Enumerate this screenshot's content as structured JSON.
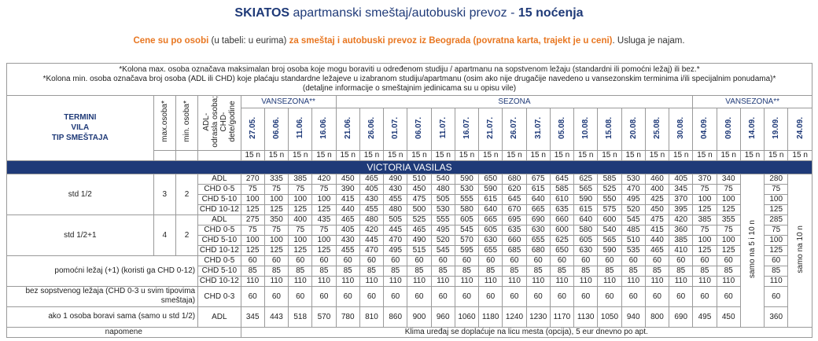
{
  "header": {
    "title_bold": "SKIATOS",
    "title_mid": " apartmanski smeštaj/autobuski prevoz - ",
    "title_end": "15 noćenja",
    "sub_a": "Cene su po osobi",
    "sub_b": " (u tabeli: u eurima) ",
    "sub_c": "za smeštaj i autobuski prevoz iz Beograda (povratna karta, trajekt je u ceni)",
    "sub_d": ". Usluga je najam."
  },
  "notes": {
    "line1": "*Kolona max. osoba označava maksimalan broj osoba koje mogu boraviti u određenom studiju / apartmanu na sopstvenom ležaju (standardni ili pomoćni ležaj) ili bez.*",
    "line2": "*Kolona min. osoba označava broj osoba (ADL ili CHD) koje plaćaju standardne ležajeve u izabranom studiju/apartmanu (osim ako nije drugačije navedeno u vansezonskim terminima i/ili specijalnim ponudama)*",
    "line3": "(detaljne informacije o smeštajnim jedinicama su u opisu vile)"
  },
  "columns": {
    "left_header": [
      "TERMINI",
      "VILA",
      "TIP SMEŠTAJA"
    ],
    "max_label": "max.osoba*",
    "min_label": "min. osoba*",
    "cat_label": [
      "ADL-",
      "odrasla osoba;",
      "CHD-",
      "dete/godine"
    ],
    "season_1": "VANSEZONA**",
    "season_2": "SEZONA",
    "season_3": "VANSEZONA**",
    "dates": [
      "27.05.",
      "06.06.",
      "11.06.",
      "16.06.",
      "21.06.",
      "26.06.",
      "01.07.",
      "06.07.",
      "11.07.",
      "16.07.",
      "21.07.",
      "26.07.",
      "31.07.",
      "05.08.",
      "10.08.",
      "15.08.",
      "20.08.",
      "25.08.",
      "30.08.",
      "04.09.",
      "09.09.",
      "14.09.",
      "19.09.",
      "24.09."
    ],
    "nights": "15 n"
  },
  "villa": "VICTORIA VASILAS",
  "rooms": [
    {
      "name": "std 1/2",
      "max": "3",
      "min": "2",
      "rows": [
        {
          "cat": "ADL",
          "v": [
            "270",
            "335",
            "385",
            "420",
            "450",
            "465",
            "490",
            "510",
            "540",
            "590",
            "650",
            "680",
            "675",
            "645",
            "625",
            "585",
            "530",
            "460",
            "405",
            "370",
            "340",
            "280"
          ]
        },
        {
          "cat": "CHD 0-5",
          "v": [
            "75",
            "75",
            "75",
            "75",
            "390",
            "405",
            "430",
            "450",
            "480",
            "530",
            "590",
            "620",
            "615",
            "585",
            "565",
            "525",
            "470",
            "400",
            "345",
            "75",
            "75",
            "75"
          ]
        },
        {
          "cat": "CHD 5-10",
          "v": [
            "100",
            "100",
            "100",
            "100",
            "415",
            "430",
            "455",
            "475",
            "505",
            "555",
            "615",
            "645",
            "640",
            "610",
            "590",
            "550",
            "495",
            "425",
            "370",
            "100",
            "100",
            "100"
          ]
        },
        {
          "cat": "CHD 10-12",
          "v": [
            "125",
            "125",
            "125",
            "125",
            "440",
            "455",
            "480",
            "500",
            "530",
            "580",
            "640",
            "670",
            "665",
            "635",
            "615",
            "575",
            "520",
            "450",
            "395",
            "125",
            "125",
            "125"
          ]
        }
      ]
    },
    {
      "name": "std 1/2+1",
      "max": "4",
      "min": "2",
      "rows": [
        {
          "cat": "ADL",
          "v": [
            "275",
            "350",
            "400",
            "435",
            "465",
            "480",
            "505",
            "525",
            "555",
            "605",
            "665",
            "695",
            "690",
            "660",
            "640",
            "600",
            "545",
            "475",
            "420",
            "385",
            "355",
            "285"
          ]
        },
        {
          "cat": "CHD 0-5",
          "v": [
            "75",
            "75",
            "75",
            "75",
            "405",
            "420",
            "445",
            "465",
            "495",
            "545",
            "605",
            "635",
            "630",
            "600",
            "580",
            "540",
            "485",
            "415",
            "360",
            "75",
            "75",
            "75"
          ]
        },
        {
          "cat": "CHD 5-10",
          "v": [
            "100",
            "100",
            "100",
            "100",
            "430",
            "445",
            "470",
            "490",
            "520",
            "570",
            "630",
            "660",
            "655",
            "625",
            "605",
            "565",
            "510",
            "440",
            "385",
            "100",
            "100",
            "100"
          ]
        },
        {
          "cat": "CHD 10-12",
          "v": [
            "125",
            "125",
            "125",
            "125",
            "455",
            "470",
            "495",
            "515",
            "545",
            "595",
            "655",
            "685",
            "680",
            "650",
            "630",
            "590",
            "535",
            "465",
            "410",
            "125",
            "125",
            "125"
          ]
        }
      ]
    }
  ],
  "extra_bed": {
    "label": "pomoćni ležaj (+1) (koristi ga CHD 0-12)",
    "rows": [
      {
        "cat": "CHD 0-5",
        "v": [
          "60",
          "60",
          "60",
          "60",
          "60",
          "60",
          "60",
          "60",
          "60",
          "60",
          "60",
          "60",
          "60",
          "60",
          "60",
          "60",
          "60",
          "60",
          "60",
          "60",
          "60",
          "60"
        ]
      },
      {
        "cat": "CHD 5-10",
        "v": [
          "85",
          "85",
          "85",
          "85",
          "85",
          "85",
          "85",
          "85",
          "85",
          "85",
          "85",
          "85",
          "85",
          "85",
          "85",
          "85",
          "85",
          "85",
          "85",
          "85",
          "85",
          "85"
        ]
      },
      {
        "cat": "CHD 10-12",
        "v": [
          "110",
          "110",
          "110",
          "110",
          "110",
          "110",
          "110",
          "110",
          "110",
          "110",
          "110",
          "110",
          "110",
          "110",
          "110",
          "110",
          "110",
          "110",
          "110",
          "110",
          "110",
          "110"
        ]
      }
    ]
  },
  "no_bed": {
    "label": "bez sopstvenog ležaja (CHD 0-3 u svim tipovima smeštaja)",
    "cat": "CHD 0-3",
    "v": [
      "60",
      "60",
      "60",
      "60",
      "60",
      "60",
      "60",
      "60",
      "60",
      "60",
      "60",
      "60",
      "60",
      "60",
      "60",
      "60",
      "60",
      "60",
      "60",
      "60",
      "60",
      "60"
    ]
  },
  "single": {
    "label": "ako 1 osoba boravi sama (samo u std 1/2)",
    "cat": "ADL",
    "v": [
      "345",
      "443",
      "518",
      "570",
      "780",
      "810",
      "860",
      "900",
      "960",
      "1060",
      "1180",
      "1240",
      "1230",
      "1170",
      "1130",
      "1050",
      "940",
      "800",
      "690",
      "495",
      "450",
      "360"
    ]
  },
  "stay_notes": {
    "col_1409": "samo na 5 i 10 n",
    "col_2409": "samo na 10 n"
  },
  "footer": {
    "label": "napomene",
    "text": "Klima uređaj se doplaćuje na licu mesta (opcija), 5 eur dnevno po apt."
  }
}
